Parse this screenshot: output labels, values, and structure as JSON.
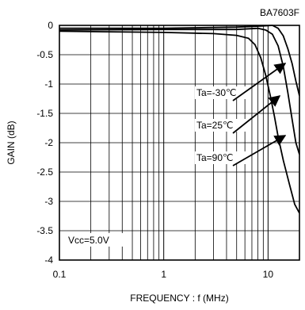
{
  "chart_data": {
    "type": "line",
    "title": "BA7603F",
    "xlabel": "FREQUENCY : f (MHz)",
    "ylabel": "GAIN (dB)",
    "x_scale": "log",
    "xlim": [
      0.1,
      20
    ],
    "ylim": [
      -4,
      0
    ],
    "x_ticks": [
      0.1,
      1,
      10
    ],
    "x_tick_labels": [
      "0.1",
      "1",
      "10"
    ],
    "y_ticks": [
      0,
      -0.5,
      -1,
      -1.5,
      -2,
      -2.5,
      -3,
      -3.5,
      -4
    ],
    "y_tick_labels": [
      "0",
      "-0.5",
      "-1",
      "-1.5",
      "-2",
      "-2.5",
      "-3",
      "-3.5",
      "-4"
    ],
    "grid": true,
    "series": [
      {
        "name": "Ta=-30℃",
        "x": [
          0.1,
          1,
          5,
          9,
          11,
          12.5,
          14,
          15.5,
          17,
          18.5,
          20
        ],
        "y": [
          -0.05,
          -0.05,
          -0.03,
          -0.01,
          0.0,
          -0.05,
          -0.18,
          -0.4,
          -0.65,
          -0.95,
          -1.2
        ]
      },
      {
        "name": "Ta=25℃",
        "x": [
          0.1,
          1,
          5,
          8,
          9.5,
          11,
          12.5,
          14,
          15.5,
          17,
          18.5,
          20
        ],
        "y": [
          -0.08,
          -0.07,
          -0.07,
          -0.05,
          -0.08,
          -0.15,
          -0.35,
          -0.7,
          -1.15,
          -1.6,
          -2.0,
          -2.2
        ]
      },
      {
        "name": "Ta=90℃",
        "x": [
          0.1,
          1,
          3,
          5,
          6.5,
          7.5,
          8.5,
          9.5,
          10.5,
          11.5,
          12.5,
          14,
          16,
          18,
          20
        ],
        "y": [
          -0.1,
          -0.12,
          -0.14,
          -0.17,
          -0.22,
          -0.33,
          -0.55,
          -0.85,
          -1.2,
          -1.55,
          -1.9,
          -2.3,
          -2.7,
          -3.05,
          -3.2
        ]
      }
    ],
    "annotations": [
      {
        "text": "Ta=-30℃",
        "series": 0
      },
      {
        "text": "Ta=25℃",
        "series": 1
      },
      {
        "text": "Ta=90℃",
        "series": 2
      },
      {
        "text": "Vcc=5.0V"
      }
    ]
  }
}
